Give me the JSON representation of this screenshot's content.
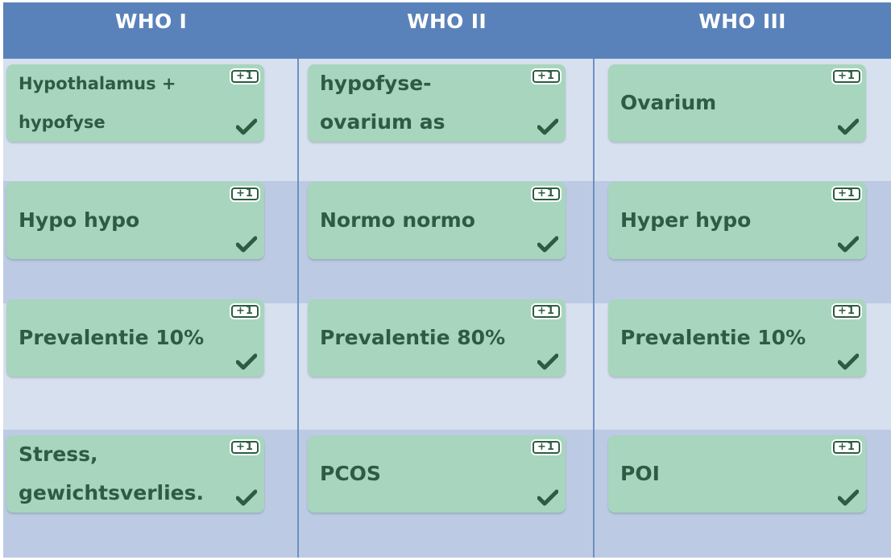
{
  "columns": [
    {
      "title": "WHO I",
      "cards": [
        {
          "text": "Hypothalamus + hypofyse",
          "badge": "+1",
          "icon": "checkmark-icon"
        },
        {
          "text": "Hypo hypo",
          "badge": "+1",
          "icon": "checkmark-icon"
        },
        {
          "text": "Prevalentie 10%",
          "badge": "+1",
          "icon": "checkmark-icon"
        },
        {
          "text": "Stress, gewichtsverlies.",
          "badge": "+1",
          "icon": "checkmark-icon"
        }
      ]
    },
    {
      "title": "WHO II",
      "cards": [
        {
          "text": "hypofyse-ovarium as",
          "badge": "+1",
          "icon": "checkmark-icon"
        },
        {
          "text": "Normo normo",
          "badge": "+1",
          "icon": "checkmark-icon"
        },
        {
          "text": "Prevalentie 80%",
          "badge": "+1",
          "icon": "checkmark-icon"
        },
        {
          "text": "PCOS",
          "badge": "+1",
          "icon": "checkmark-icon"
        }
      ]
    },
    {
      "title": "WHO III",
      "cards": [
        {
          "text": "Ovarium",
          "badge": "+1",
          "icon": "checkmark-icon"
        },
        {
          "text": "Hyper hypo",
          "badge": "+1",
          "icon": "checkmark-icon"
        },
        {
          "text": "Prevalentie 10%",
          "badge": "+1",
          "icon": "checkmark-icon"
        },
        {
          "text": "POI",
          "badge": "+1",
          "icon": "checkmark-icon"
        }
      ]
    }
  ],
  "colors": {
    "header": "#5a82ba",
    "card": "#a8d5bd",
    "card_text": "#2e5c43",
    "band_light": "#d7e0ef",
    "band_dark": "#bccbe3"
  }
}
